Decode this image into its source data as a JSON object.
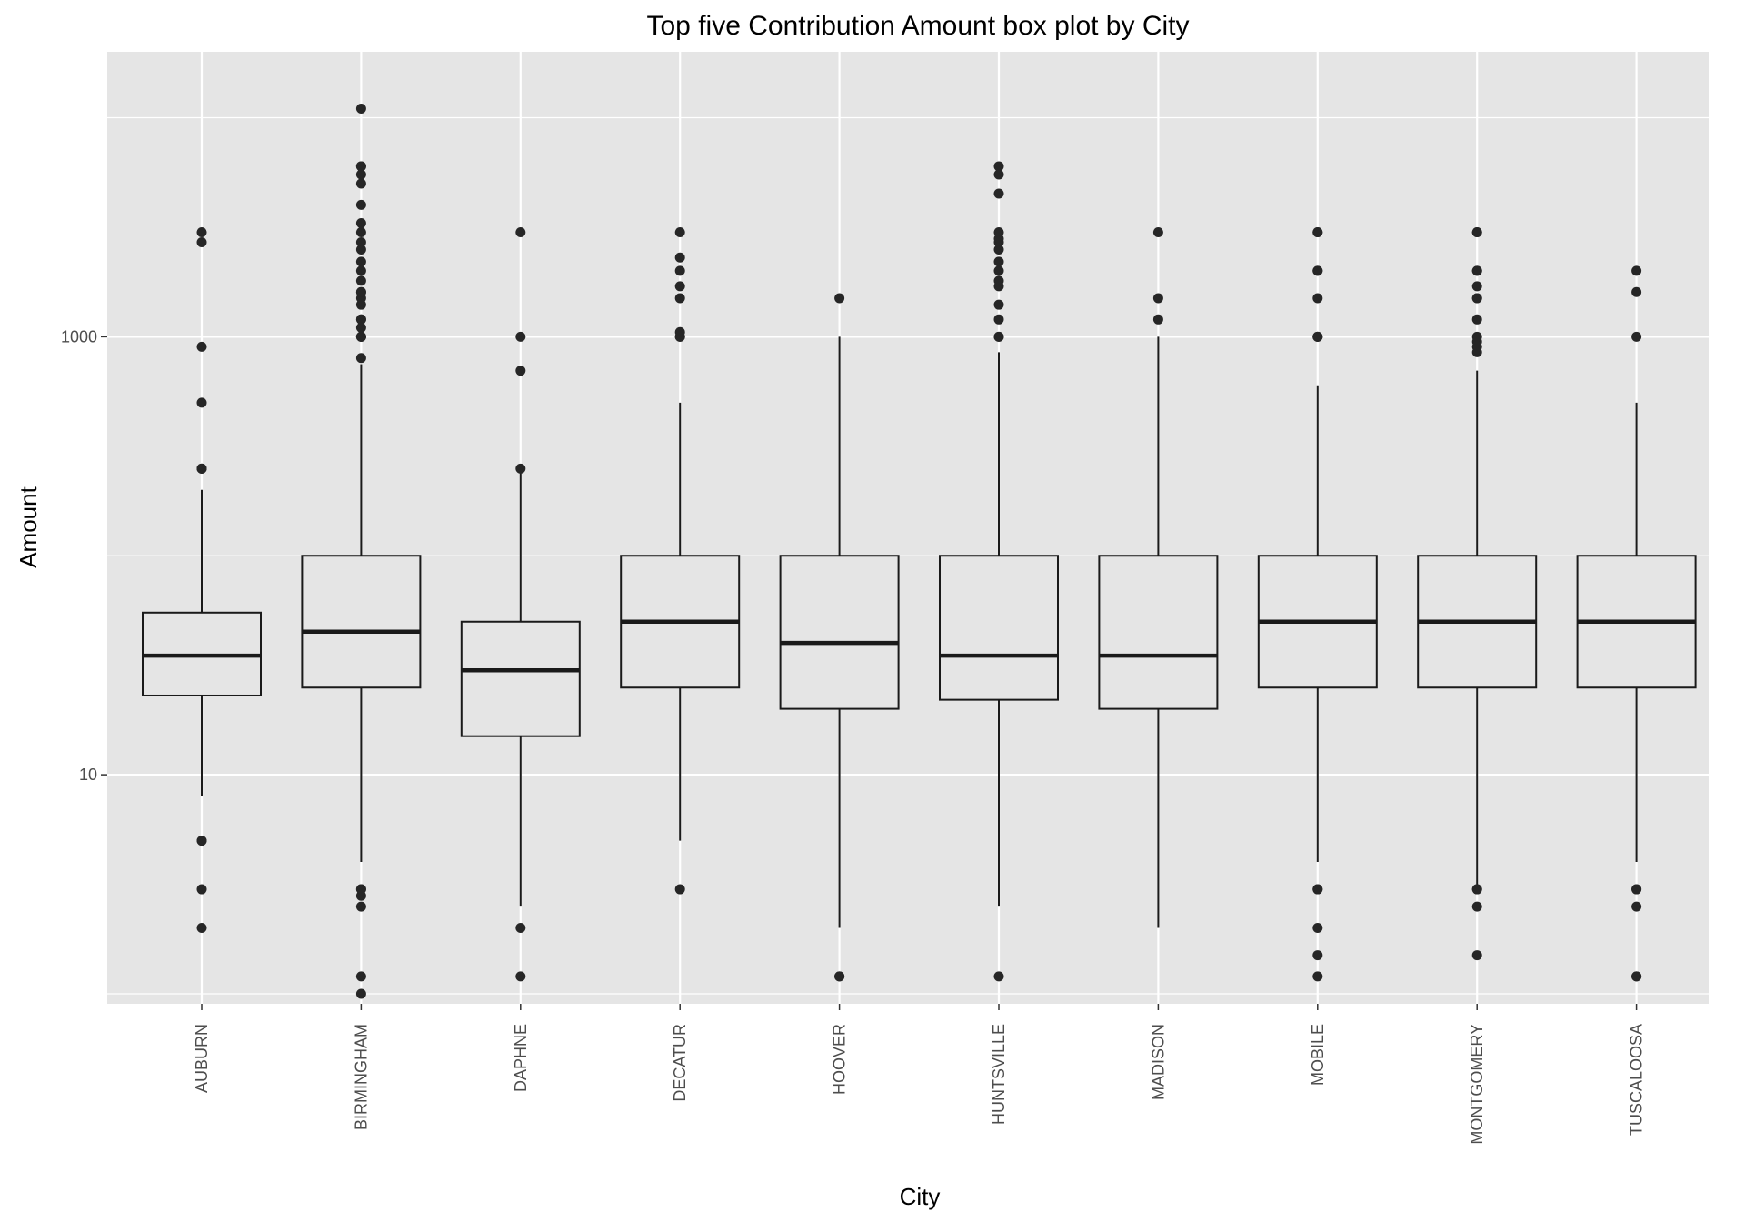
{
  "chart_data": {
    "type": "box",
    "title": "Top five Contribution Amount box plot by City",
    "xlabel": "City",
    "ylabel": "Amount",
    "y_scale": "log10",
    "ylim": [
      0.9,
      20000
    ],
    "y_major_ticks": [
      10,
      1000
    ],
    "y_minor_gridlines": [
      1,
      100,
      10000
    ],
    "grid": true,
    "background_color": "#e5e5e5",
    "grid_color": "#ffffff",
    "box_line_color": "#1a1a1a",
    "outlier_color": "#262626",
    "categories": [
      "AUBURN",
      "BIRMINGHAM",
      "DAPHNE",
      "DECATUR",
      "HOOVER",
      "HUNTSVILLE",
      "MADISON",
      "MOBILE",
      "MONTGOMERY",
      "TUSCALOOSA"
    ],
    "boxes": [
      {
        "city": "AUBURN",
        "whisker_low": 8,
        "q1": 23,
        "median": 35,
        "q3": 55,
        "whisker_high": 200,
        "outliers": [
          2,
          3,
          5,
          5,
          500,
          250,
          250,
          250,
          900,
          3000,
          2700
        ]
      },
      {
        "city": "BIRMINGHAM",
        "whisker_low": 4,
        "q1": 25,
        "median": 45,
        "q3": 100,
        "whisker_high": 750,
        "outliers": [
          1,
          1.2,
          2.5,
          2.8,
          3,
          3,
          800,
          1000,
          1000,
          1000,
          1100,
          1200,
          1200,
          1400,
          1500,
          1600,
          1600,
          1800,
          2000,
          2200,
          2500,
          2700,
          3000,
          3300,
          4000,
          5000,
          5500,
          6000,
          6000,
          11000
        ]
      },
      {
        "city": "DAPHNE",
        "whisker_low": 2.5,
        "q1": 15,
        "median": 30,
        "q3": 50,
        "whisker_high": 250,
        "outliers": [
          1.2,
          2,
          250,
          700,
          1000,
          3000
        ]
      },
      {
        "city": "DECATUR",
        "whisker_low": 5,
        "q1": 25,
        "median": 50,
        "q3": 100,
        "whisker_high": 500,
        "outliers": [
          3,
          1000,
          1000,
          1050,
          1500,
          1700,
          2000,
          2300,
          3000
        ]
      },
      {
        "city": "HOOVER",
        "whisker_low": 2,
        "q1": 20,
        "median": 40,
        "q3": 100,
        "whisker_high": 1000,
        "outliers": [
          1.2,
          1.2,
          1500
        ]
      },
      {
        "city": "HUNTSVILLE",
        "whisker_low": 2.5,
        "q1": 22,
        "median": 35,
        "q3": 100,
        "whisker_high": 850,
        "outliers": [
          1.2,
          1000,
          1000,
          1200,
          1400,
          1700,
          1800,
          2000,
          2200,
          2500,
          2700,
          2800,
          3000,
          4500,
          5500,
          6000
        ]
      },
      {
        "city": "MADISON",
        "whisker_low": 2,
        "q1": 20,
        "median": 35,
        "q3": 100,
        "whisker_high": 1000,
        "outliers": [
          1200,
          1500,
          3000
        ]
      },
      {
        "city": "MOBILE",
        "whisker_low": 4,
        "q1": 25,
        "median": 50,
        "q3": 100,
        "whisker_high": 600,
        "outliers": [
          1.2,
          1.5,
          2,
          3,
          3,
          1000,
          1000,
          1000,
          1500,
          2000,
          2000,
          3000,
          3000
        ]
      },
      {
        "city": "MONTGOMERY",
        "whisker_low": 3,
        "q1": 25,
        "median": 50,
        "q3": 100,
        "whisker_high": 700,
        "outliers": [
          1.5,
          2.5,
          3,
          3,
          850,
          900,
          950,
          1000,
          1200,
          1500,
          1500,
          1700,
          2000,
          2000,
          3000,
          3000
        ]
      },
      {
        "city": "TUSCALOOSA",
        "whisker_low": 4,
        "q1": 25,
        "median": 50,
        "q3": 100,
        "whisker_high": 500,
        "outliers": [
          1.2,
          1.2,
          2.5,
          3,
          3,
          1000,
          1600,
          2000
        ]
      }
    ]
  }
}
